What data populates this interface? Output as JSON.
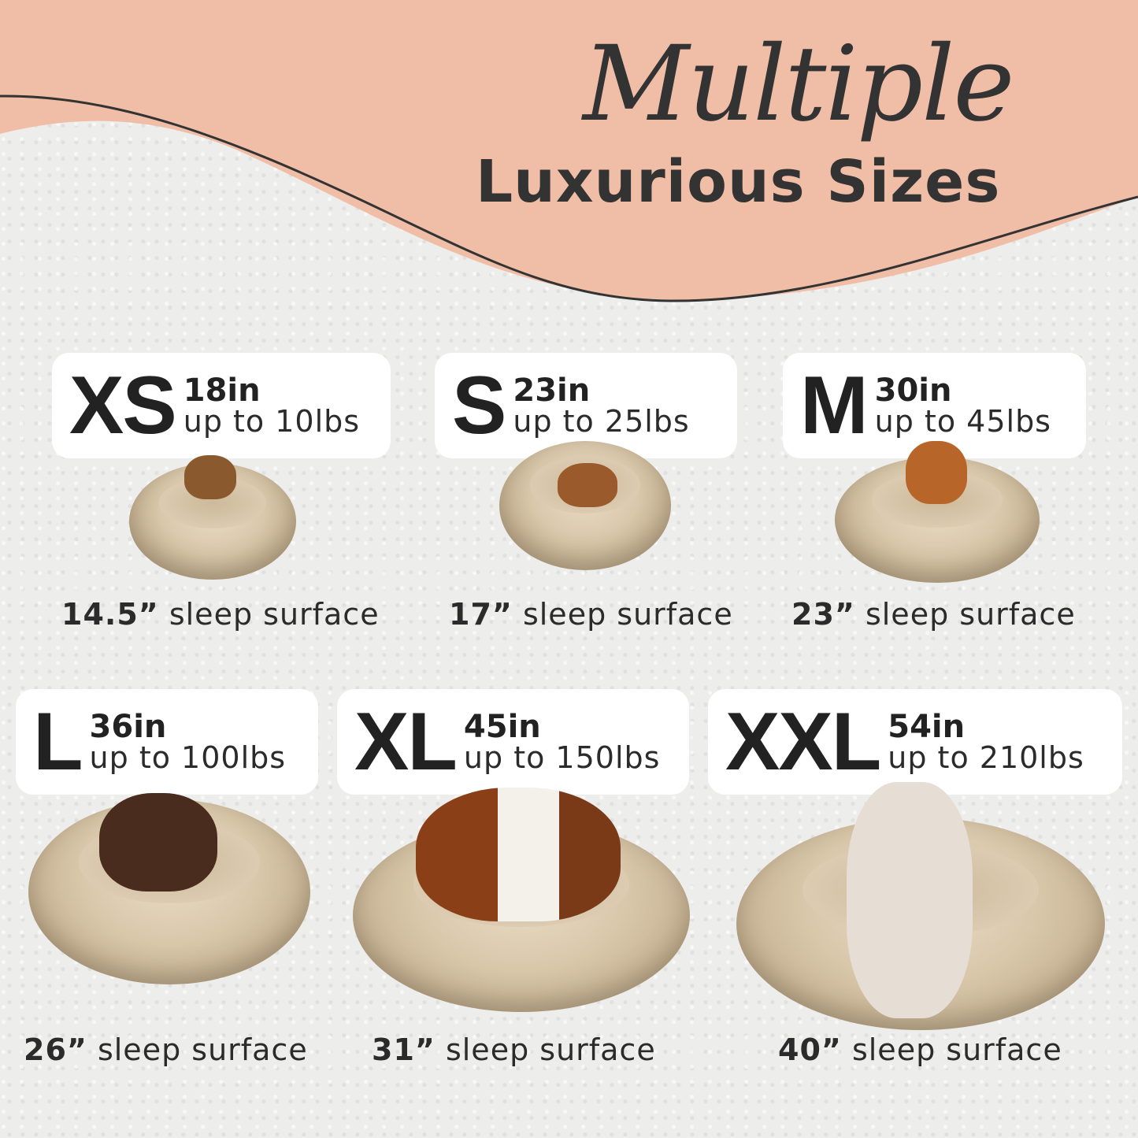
{
  "title": {
    "script": "Multiple",
    "main": "Luxurious Sizes"
  },
  "colors": {
    "band": "#f0bea6",
    "text": "#2b2b2b",
    "card": "#ffffff",
    "bed": "#d9c7aa"
  },
  "sizes": [
    {
      "label": "XS",
      "diameter": "18in",
      "weight": "up to 10lbs",
      "surface_value": "14.5”",
      "surface_text": "sleep surface"
    },
    {
      "label": "S",
      "diameter": "23in",
      "weight": "up to 25lbs",
      "surface_value": "17”",
      "surface_text": "sleep surface"
    },
    {
      "label": "M",
      "diameter": "30in",
      "weight": "up to 45lbs",
      "surface_value": "23”",
      "surface_text": "sleep surface"
    },
    {
      "label": "L",
      "diameter": "36in",
      "weight": "up to 100lbs",
      "surface_value": "26”",
      "surface_text": "sleep surface"
    },
    {
      "label": "XL",
      "diameter": "45in",
      "weight": "up to 150lbs",
      "surface_value": "31”",
      "surface_text": "sleep surface"
    },
    {
      "label": "XXL",
      "diameter": "54in",
      "weight": "up to 210lbs",
      "surface_value": "40”",
      "surface_text": "sleep surface"
    }
  ]
}
